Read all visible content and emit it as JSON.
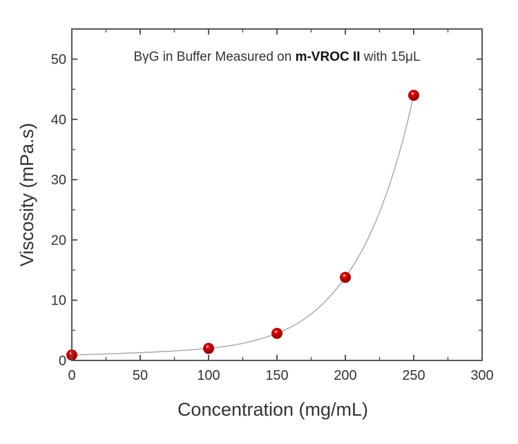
{
  "chart_data": {
    "type": "scatter",
    "title": "",
    "annotation": {
      "prefix": "BγG in Buffer Measured on ",
      "bold": "m-VROC II",
      "suffix": " with 15μL"
    },
    "xlabel": "Concentration (mg/mL)",
    "ylabel": "Viscosity (mPa.s)",
    "xlim": [
      0,
      300
    ],
    "ylim": [
      0,
      55
    ],
    "xticks": [
      0,
      50,
      100,
      150,
      200,
      250,
      300
    ],
    "yticks": [
      0,
      10,
      20,
      30,
      40,
      50
    ],
    "grid": false,
    "series": [
      {
        "x": [
          0,
          100,
          150,
          200,
          250
        ],
        "y": [
          0.9,
          2.0,
          4.5,
          13.8,
          44.0
        ],
        "color": "#e00000",
        "marker": "sphere"
      }
    ],
    "fit_line": {
      "color": "#aaaaaa"
    }
  }
}
